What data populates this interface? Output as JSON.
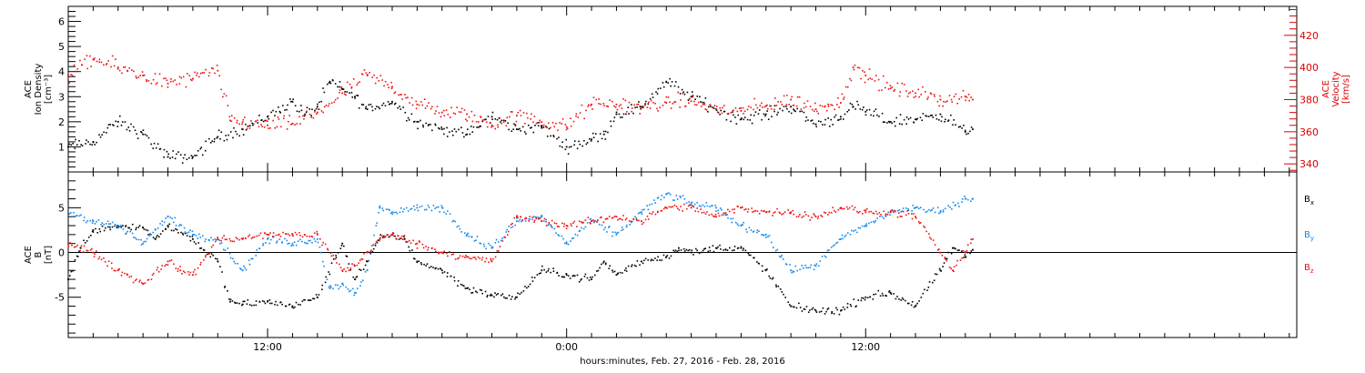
{
  "xlabel": "hours:minutes, Feb. 27, 2016 - Feb. 28, 2016",
  "colors": {
    "black": "#000000",
    "red": "#ee1111",
    "blue": "#1188ee",
    "axis_red": "#dd0000"
  },
  "chart_data": [
    {
      "type": "scatter",
      "panel": "top",
      "xlim": [
        4,
        53.3
      ],
      "x_ticks": [
        12,
        24,
        36
      ],
      "x_tick_labels": [
        "12:00",
        "0:00",
        "12:00"
      ],
      "data_end": 40.3,
      "left_axis": {
        "label_lines": [
          "ACE",
          "Ion Density",
          "[cm⁻³]"
        ],
        "ylim": [
          0,
          6.6
        ],
        "ticks": [
          1,
          2,
          3,
          4,
          5,
          6
        ],
        "tick_labels": [
          "1",
          "2",
          "3",
          "4",
          "5",
          "6"
        ]
      },
      "right_axis": {
        "label_lines": [
          "ACE",
          "Velocity",
          "[km/s]"
        ],
        "ylim": [
          335,
          438
        ],
        "ticks": [
          340,
          360,
          380,
          400,
          420
        ],
        "tick_labels": [
          "340",
          "360",
          "380",
          "400",
          "420"
        ]
      },
      "series": [
        {
          "color": "black",
          "axis": "left",
          "x": [
            4.0,
            5.0,
            6.0,
            7.0,
            8.0,
            9.0,
            10.0,
            11.0,
            12.0,
            13.0,
            13.5,
            14.0,
            14.5,
            15.0,
            15.5,
            16.0,
            17.0,
            18.0,
            19.0,
            20.0,
            21.0,
            22.0,
            23.0,
            24.0,
            25.0,
            25.5,
            26.0,
            27.0,
            28.0,
            29.0,
            30.0,
            31.0,
            32.0,
            33.0,
            34.0,
            35.0,
            35.5,
            36.0,
            37.0,
            38.0,
            39.0,
            40.0,
            40.3
          ],
          "values": [
            1.0,
            1.2,
            2.0,
            1.5,
            0.6,
            0.6,
            1.4,
            1.7,
            2.2,
            2.8,
            2.3,
            2.6,
            3.6,
            3.3,
            3.0,
            2.5,
            2.8,
            2.0,
            1.7,
            1.5,
            2.2,
            1.7,
            1.8,
            1.0,
            1.3,
            1.5,
            2.3,
            2.6,
            3.6,
            3.0,
            2.5,
            2.1,
            2.3,
            2.6,
            1.9,
            2.2,
            2.6,
            2.4,
            2.0,
            2.1,
            2.3,
            1.6,
            1.7
          ]
        },
        {
          "color": "red",
          "axis": "right",
          "x": [
            4.0,
            5.0,
            6.0,
            7.0,
            8.0,
            9.0,
            10.0,
            10.5,
            11.0,
            12.0,
            13.0,
            14.0,
            15.0,
            16.0,
            17.0,
            18.0,
            19.0,
            20.0,
            21.0,
            22.0,
            23.0,
            24.0,
            25.0,
            26.0,
            27.0,
            28.0,
            29.0,
            30.0,
            31.0,
            32.0,
            33.0,
            34.0,
            34.5,
            35.0,
            35.5,
            36.0,
            37.0,
            38.0,
            39.0,
            40.0,
            40.3
          ],
          "values": [
            395,
            405,
            400,
            395,
            390,
            393,
            398,
            367,
            366,
            364,
            365,
            372,
            384,
            395,
            388,
            377,
            372,
            371,
            364,
            370,
            366,
            363,
            377,
            377,
            375,
            378,
            379,
            374,
            373,
            376,
            380,
            374,
            377,
            378,
            400,
            395,
            387,
            384,
            380,
            382,
            380
          ]
        }
      ]
    },
    {
      "type": "scatter",
      "panel": "bottom",
      "xlim": [
        4,
        53.3
      ],
      "x_ticks": [
        12,
        24,
        36
      ],
      "x_tick_labels": [
        "12:00",
        "0:00",
        "12:00"
      ],
      "data_end": 40.3,
      "zero_line": true,
      "left_axis": {
        "label_lines": [
          "ACE",
          "B",
          "[nT]"
        ],
        "ylim": [
          -9.5,
          9
        ],
        "ticks": [
          -5,
          0,
          5
        ],
        "tick_labels": [
          "-5",
          "0",
          "5"
        ]
      },
      "legend": [
        {
          "label": "B",
          "sub": "x",
          "color": "black"
        },
        {
          "label": "B",
          "sub": "y",
          "color": "blue"
        },
        {
          "label": "B",
          "sub": "z",
          "color": "red"
        }
      ],
      "series": [
        {
          "name": "Bx",
          "color": "black",
          "x": [
            4.0,
            4.5,
            5.0,
            6.0,
            7.0,
            7.5,
            8.0,
            9.0,
            10.0,
            10.5,
            11.0,
            12.0,
            13.0,
            14.0,
            15.0,
            15.5,
            16.0,
            16.5,
            17.0,
            17.5,
            18.0,
            19.0,
            20.0,
            21.0,
            22.0,
            23.0,
            24.0,
            25.0,
            25.5,
            26.0,
            27.0,
            28.0,
            28.5,
            29.0,
            30.0,
            31.0,
            32.0,
            33.0,
            34.0,
            35.0,
            36.0,
            37.0,
            38.0,
            39.0,
            39.5,
            40.0,
            40.3
          ],
          "values": [
            -3.0,
            0.5,
            2.5,
            3.0,
            2.8,
            1.5,
            3.0,
            1.5,
            -1.0,
            -5.5,
            -5.8,
            -5.5,
            -6.0,
            -5.0,
            1.0,
            -3.0,
            -1.0,
            1.5,
            2.0,
            1.5,
            -1.0,
            -2.0,
            -4.0,
            -4.8,
            -5.0,
            -2.0,
            -2.5,
            -3.0,
            -1.0,
            -2.5,
            -1.0,
            -0.5,
            0.5,
            0.0,
            0.5,
            0.5,
            -2.0,
            -6.0,
            -6.5,
            -6.5,
            -5.0,
            -4.5,
            -6.0,
            -2.0,
            0.5,
            -0.5,
            0.3
          ]
        },
        {
          "name": "By",
          "color": "blue",
          "x": [
            4.0,
            5.0,
            6.0,
            7.0,
            8.0,
            9.0,
            10.0,
            11.0,
            12.0,
            13.0,
            14.0,
            14.5,
            15.0,
            15.5,
            16.0,
            16.5,
            17.0,
            18.0,
            19.0,
            20.0,
            21.0,
            22.0,
            23.0,
            24.0,
            25.0,
            26.0,
            27.0,
            28.0,
            29.0,
            30.0,
            31.0,
            32.0,
            33.0,
            34.0,
            35.0,
            36.0,
            37.0,
            38.0,
            39.0,
            40.0,
            40.3
          ],
          "values": [
            4.5,
            3.5,
            3.0,
            1.0,
            4.0,
            2.0,
            1.5,
            -2.0,
            1.5,
            1.0,
            1.5,
            -4.0,
            -3.5,
            -4.5,
            -2.0,
            5.0,
            4.5,
            5.0,
            5.0,
            2.0,
            0.5,
            3.5,
            4.0,
            1.0,
            3.5,
            2.0,
            4.5,
            6.5,
            5.5,
            5.0,
            3.0,
            2.0,
            -2.0,
            -1.5,
            1.5,
            3.0,
            4.5,
            5.0,
            4.5,
            6.0,
            6.0
          ]
        },
        {
          "name": "Bz",
          "color": "red",
          "x": [
            4.0,
            5.0,
            6.0,
            7.0,
            8.0,
            8.5,
            9.0,
            10.0,
            11.0,
            12.0,
            13.0,
            14.0,
            15.0,
            15.5,
            16.0,
            16.5,
            17.0,
            18.0,
            19.0,
            20.0,
            21.0,
            22.0,
            23.0,
            24.0,
            25.0,
            26.0,
            27.0,
            28.0,
            29.0,
            30.0,
            31.0,
            32.0,
            33.0,
            34.0,
            35.0,
            36.0,
            37.0,
            38.0,
            39.0,
            39.5,
            40.0,
            40.3
          ],
          "values": [
            1.0,
            0.0,
            -2.0,
            -3.5,
            -1.0,
            -2.0,
            -2.5,
            1.5,
            1.5,
            2.0,
            2.0,
            2.0,
            -2.0,
            -1.5,
            0.0,
            1.5,
            2.0,
            1.0,
            0.0,
            -0.5,
            -1.0,
            4.0,
            3.5,
            3.0,
            3.5,
            4.0,
            3.5,
            5.0,
            5.0,
            4.0,
            5.0,
            4.5,
            4.5,
            4.0,
            5.0,
            4.5,
            4.5,
            4.0,
            0.0,
            -2.0,
            0.0,
            1.5
          ]
        }
      ]
    }
  ]
}
